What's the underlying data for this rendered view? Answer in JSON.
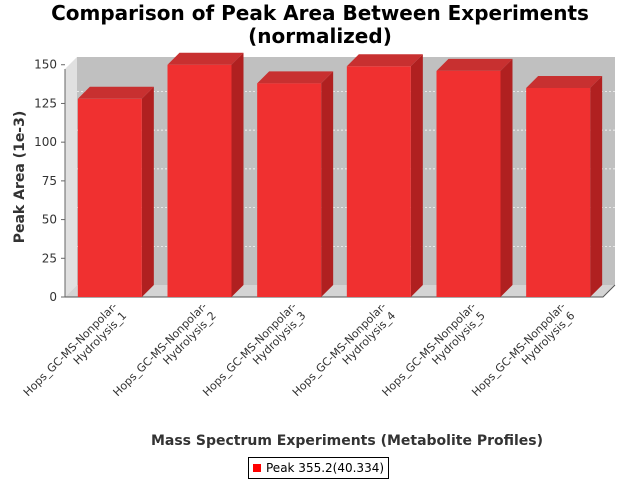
{
  "chart_data": {
    "type": "bar",
    "title_lines": [
      "Comparison of Peak Area Between Experiments",
      "(normalized)"
    ],
    "xlabel": "Mass Spectrum Experiments (Metabolite Profiles)",
    "ylabel": "Peak Area (1e-3)",
    "ylim": [
      0,
      155
    ],
    "yticks": [
      0,
      25,
      50,
      75,
      100,
      125,
      150
    ],
    "categories": [
      [
        "Hops_GC-MS-Nonpolar-",
        "Hydrolysis_1"
      ],
      [
        "Hops_GC-MS-Nonpolar-",
        "Hydrolysis_2"
      ],
      [
        "Hops_GC-MS-Nonpolar-",
        "Hydrolysis_3"
      ],
      [
        "Hops_GC-MS-Nonpolar-",
        "Hydrolysis_4"
      ],
      [
        "Hops_GC-MS-Nonpolar-",
        "Hydrolysis_5"
      ],
      [
        "Hops_GC-MS-Nonpolar-",
        "Hydrolysis_6"
      ]
    ],
    "series": [
      {
        "name": "Peak 355.2(40.334)",
        "values": [
          128,
          150,
          138,
          149,
          146,
          135
        ]
      }
    ],
    "grid": true,
    "legend_position": "bottom",
    "colors": {
      "bar": "#f03030",
      "bar_top": "#c83030",
      "bar_side": "#b02020",
      "plot_bg": "#c0c0c0",
      "plot_floor": "#d4d4d4",
      "wall": "#e0e0e0"
    }
  }
}
